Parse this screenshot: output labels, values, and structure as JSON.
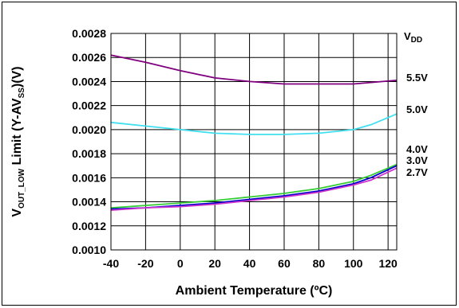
{
  "chart_data": {
    "type": "line",
    "xlabel": "Ambient Temperature (ºC)",
    "ylabel_parts": {
      "v": "V",
      "v_sub": "OUT_LOW",
      "mid": " Limit (Y-AV",
      "ss_sub": "SS",
      "end": ")(V)"
    },
    "xlim": [
      -40,
      125
    ],
    "ylim": [
      0.001,
      0.0028
    ],
    "x_ticks": [
      "-40",
      "-20",
      "0",
      "20",
      "40",
      "60",
      "80",
      "100",
      "120"
    ],
    "x_tick_values": [
      -40,
      -20,
      0,
      20,
      40,
      60,
      80,
      100,
      120
    ],
    "y_ticks": [
      "0.0010",
      "0.0012",
      "0.0014",
      "0.0016",
      "0.0018",
      "0.0020",
      "0.0022",
      "0.0024",
      "0.0026",
      "0.0028"
    ],
    "y_tick_values": [
      0.001,
      0.0012,
      0.0014,
      0.0016,
      0.0018,
      0.002,
      0.0022,
      0.0024,
      0.0026,
      0.0028
    ],
    "grid": true,
    "legend_title": {
      "main": "V",
      "sub": "DD"
    },
    "series": [
      {
        "name": "5.5V",
        "color": "#800080",
        "x": [
          -40,
          -20,
          0,
          20,
          40,
          60,
          80,
          100,
          125
        ],
        "y": [
          0.00262,
          0.00256,
          0.00249,
          0.00243,
          0.0024,
          0.00238,
          0.00238,
          0.00238,
          0.00241
        ]
      },
      {
        "name": "5.0V",
        "color": "#40e0f0",
        "x": [
          -40,
          -20,
          0,
          20,
          40,
          60,
          80,
          100,
          110,
          125
        ],
        "y": [
          0.00206,
          0.00203,
          0.002,
          0.00197,
          0.00196,
          0.00196,
          0.00197,
          0.002,
          0.00204,
          0.00213
        ]
      },
      {
        "name": "4.0V",
        "color": "#33cc33",
        "x": [
          -40,
          -20,
          0,
          20,
          40,
          60,
          80,
          100,
          110,
          125
        ],
        "y": [
          0.00135,
          0.00137,
          0.00139,
          0.00141,
          0.00144,
          0.00147,
          0.00151,
          0.00157,
          0.00162,
          0.00171
        ]
      },
      {
        "name": "3.0V",
        "color": "#0000cc",
        "x": [
          -40,
          -20,
          0,
          20,
          40,
          60,
          80,
          100,
          110,
          125
        ],
        "y": [
          0.00134,
          0.00135,
          0.00137,
          0.00139,
          0.00142,
          0.00145,
          0.00149,
          0.00155,
          0.0016,
          0.0017
        ]
      },
      {
        "name": "2.7V",
        "color": "#cc33cc",
        "x": [
          -40,
          -20,
          0,
          20,
          40,
          60,
          80,
          100,
          110,
          125
        ],
        "y": [
          0.00133,
          0.00135,
          0.00136,
          0.00138,
          0.00141,
          0.00144,
          0.00148,
          0.00154,
          0.00158,
          0.00168
        ]
      }
    ]
  }
}
